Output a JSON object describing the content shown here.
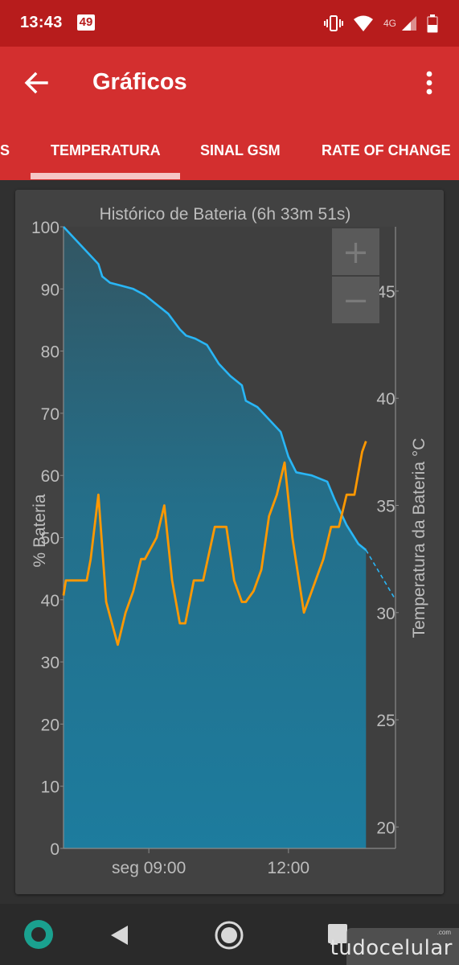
{
  "status_bar": {
    "time": "13:43",
    "badge": "49",
    "network": "4G"
  },
  "app_bar": {
    "title": "Gráficos"
  },
  "tabs": [
    {
      "label": "S",
      "selected": false
    },
    {
      "label": "TEMPERATURA",
      "selected": true
    },
    {
      "label": "SINAL GSM",
      "selected": false
    },
    {
      "label": "RATE OF CHANGE",
      "selected": false
    }
  ],
  "zoom": {
    "in": "+",
    "out": "−"
  },
  "chart_data": {
    "type": "line",
    "title": "Histórico de Bateria (6h 33m 51s)",
    "ylabel_left": "% Bateria",
    "ylabel_right": "Temperatura da Bateria °C",
    "xlim": [
      "07:10",
      "14:18"
    ],
    "ylim_left": [
      0,
      100
    ],
    "ylim_right": [
      19,
      48
    ],
    "x_ticks": [
      {
        "t": "09:00",
        "label": "seg 09:00"
      },
      {
        "t": "12:00",
        "label": "12:00"
      }
    ],
    "y_ticks_left": [
      0,
      10,
      20,
      30,
      40,
      50,
      60,
      70,
      80,
      90,
      100
    ],
    "y_ticks_right": [
      20,
      25,
      30,
      35,
      40,
      45
    ],
    "colors": {
      "battery": "#29b6f6",
      "temperature": "#ff9800",
      "fill": "#1b7fa3"
    },
    "series": [
      {
        "key": "battery",
        "axis": "left",
        "x": [
          "07:10",
          "07:25",
          "07:40",
          "07:55",
          "08:00",
          "08:10",
          "08:25",
          "08:40",
          "08:55",
          "09:10",
          "09:25",
          "09:40",
          "09:48",
          "10:00",
          "10:15",
          "10:30",
          "10:45",
          "11:00",
          "11:05",
          "11:20",
          "11:35",
          "11:50",
          "12:00",
          "12:10",
          "12:30",
          "12:50",
          "13:00",
          "13:15",
          "13:30",
          "13:40"
        ],
        "y": [
          100,
          98,
          96,
          94,
          92,
          91,
          90.5,
          90,
          89,
          87.5,
          86,
          83.5,
          82.5,
          82,
          81,
          78,
          76,
          74.5,
          72,
          71,
          69,
          67,
          63,
          60.5,
          60,
          59,
          56,
          52,
          49,
          48
        ]
      },
      {
        "key": "battery_projection",
        "axis": "left",
        "dashed": true,
        "x": [
          "13:40",
          "14:18"
        ],
        "y": [
          48,
          40
        ]
      },
      {
        "key": "temperature",
        "axis": "right",
        "x": [
          "07:10",
          "07:13",
          "07:25",
          "07:40",
          "07:45",
          "07:55",
          "08:05",
          "08:20",
          "08:30",
          "08:40",
          "08:50",
          "08:55",
          "09:10",
          "09:20",
          "09:30",
          "09:40",
          "09:47",
          "09:58",
          "10:10",
          "10:25",
          "10:40",
          "10:50",
          "11:00",
          "11:05",
          "11:15",
          "11:25",
          "11:35",
          "11:45",
          "11:55",
          "12:05",
          "12:20",
          "12:30",
          "12:45",
          "12:55",
          "13:05",
          "13:15",
          "13:25",
          "13:30",
          "13:35",
          "13:40"
        ],
        "y": [
          30.8,
          31.5,
          31.5,
          31.5,
          32.5,
          35.5,
          30.5,
          28.5,
          30.0,
          31.0,
          32.5,
          32.5,
          33.5,
          35.0,
          31.5,
          29.5,
          29.5,
          31.5,
          31.5,
          34.0,
          34.0,
          31.5,
          30.5,
          30.5,
          31.0,
          32.0,
          34.5,
          35.5,
          37.0,
          33.5,
          30.0,
          31.0,
          32.5,
          34.0,
          34.0,
          35.5,
          35.5,
          36.5,
          37.5,
          38.0
        ]
      }
    ]
  },
  "nav_bar": {
    "back": "back-icon",
    "home": "home-icon",
    "recents": "recents-icon"
  },
  "watermark": {
    "text": "tudocelular",
    "suffix": ".com"
  }
}
